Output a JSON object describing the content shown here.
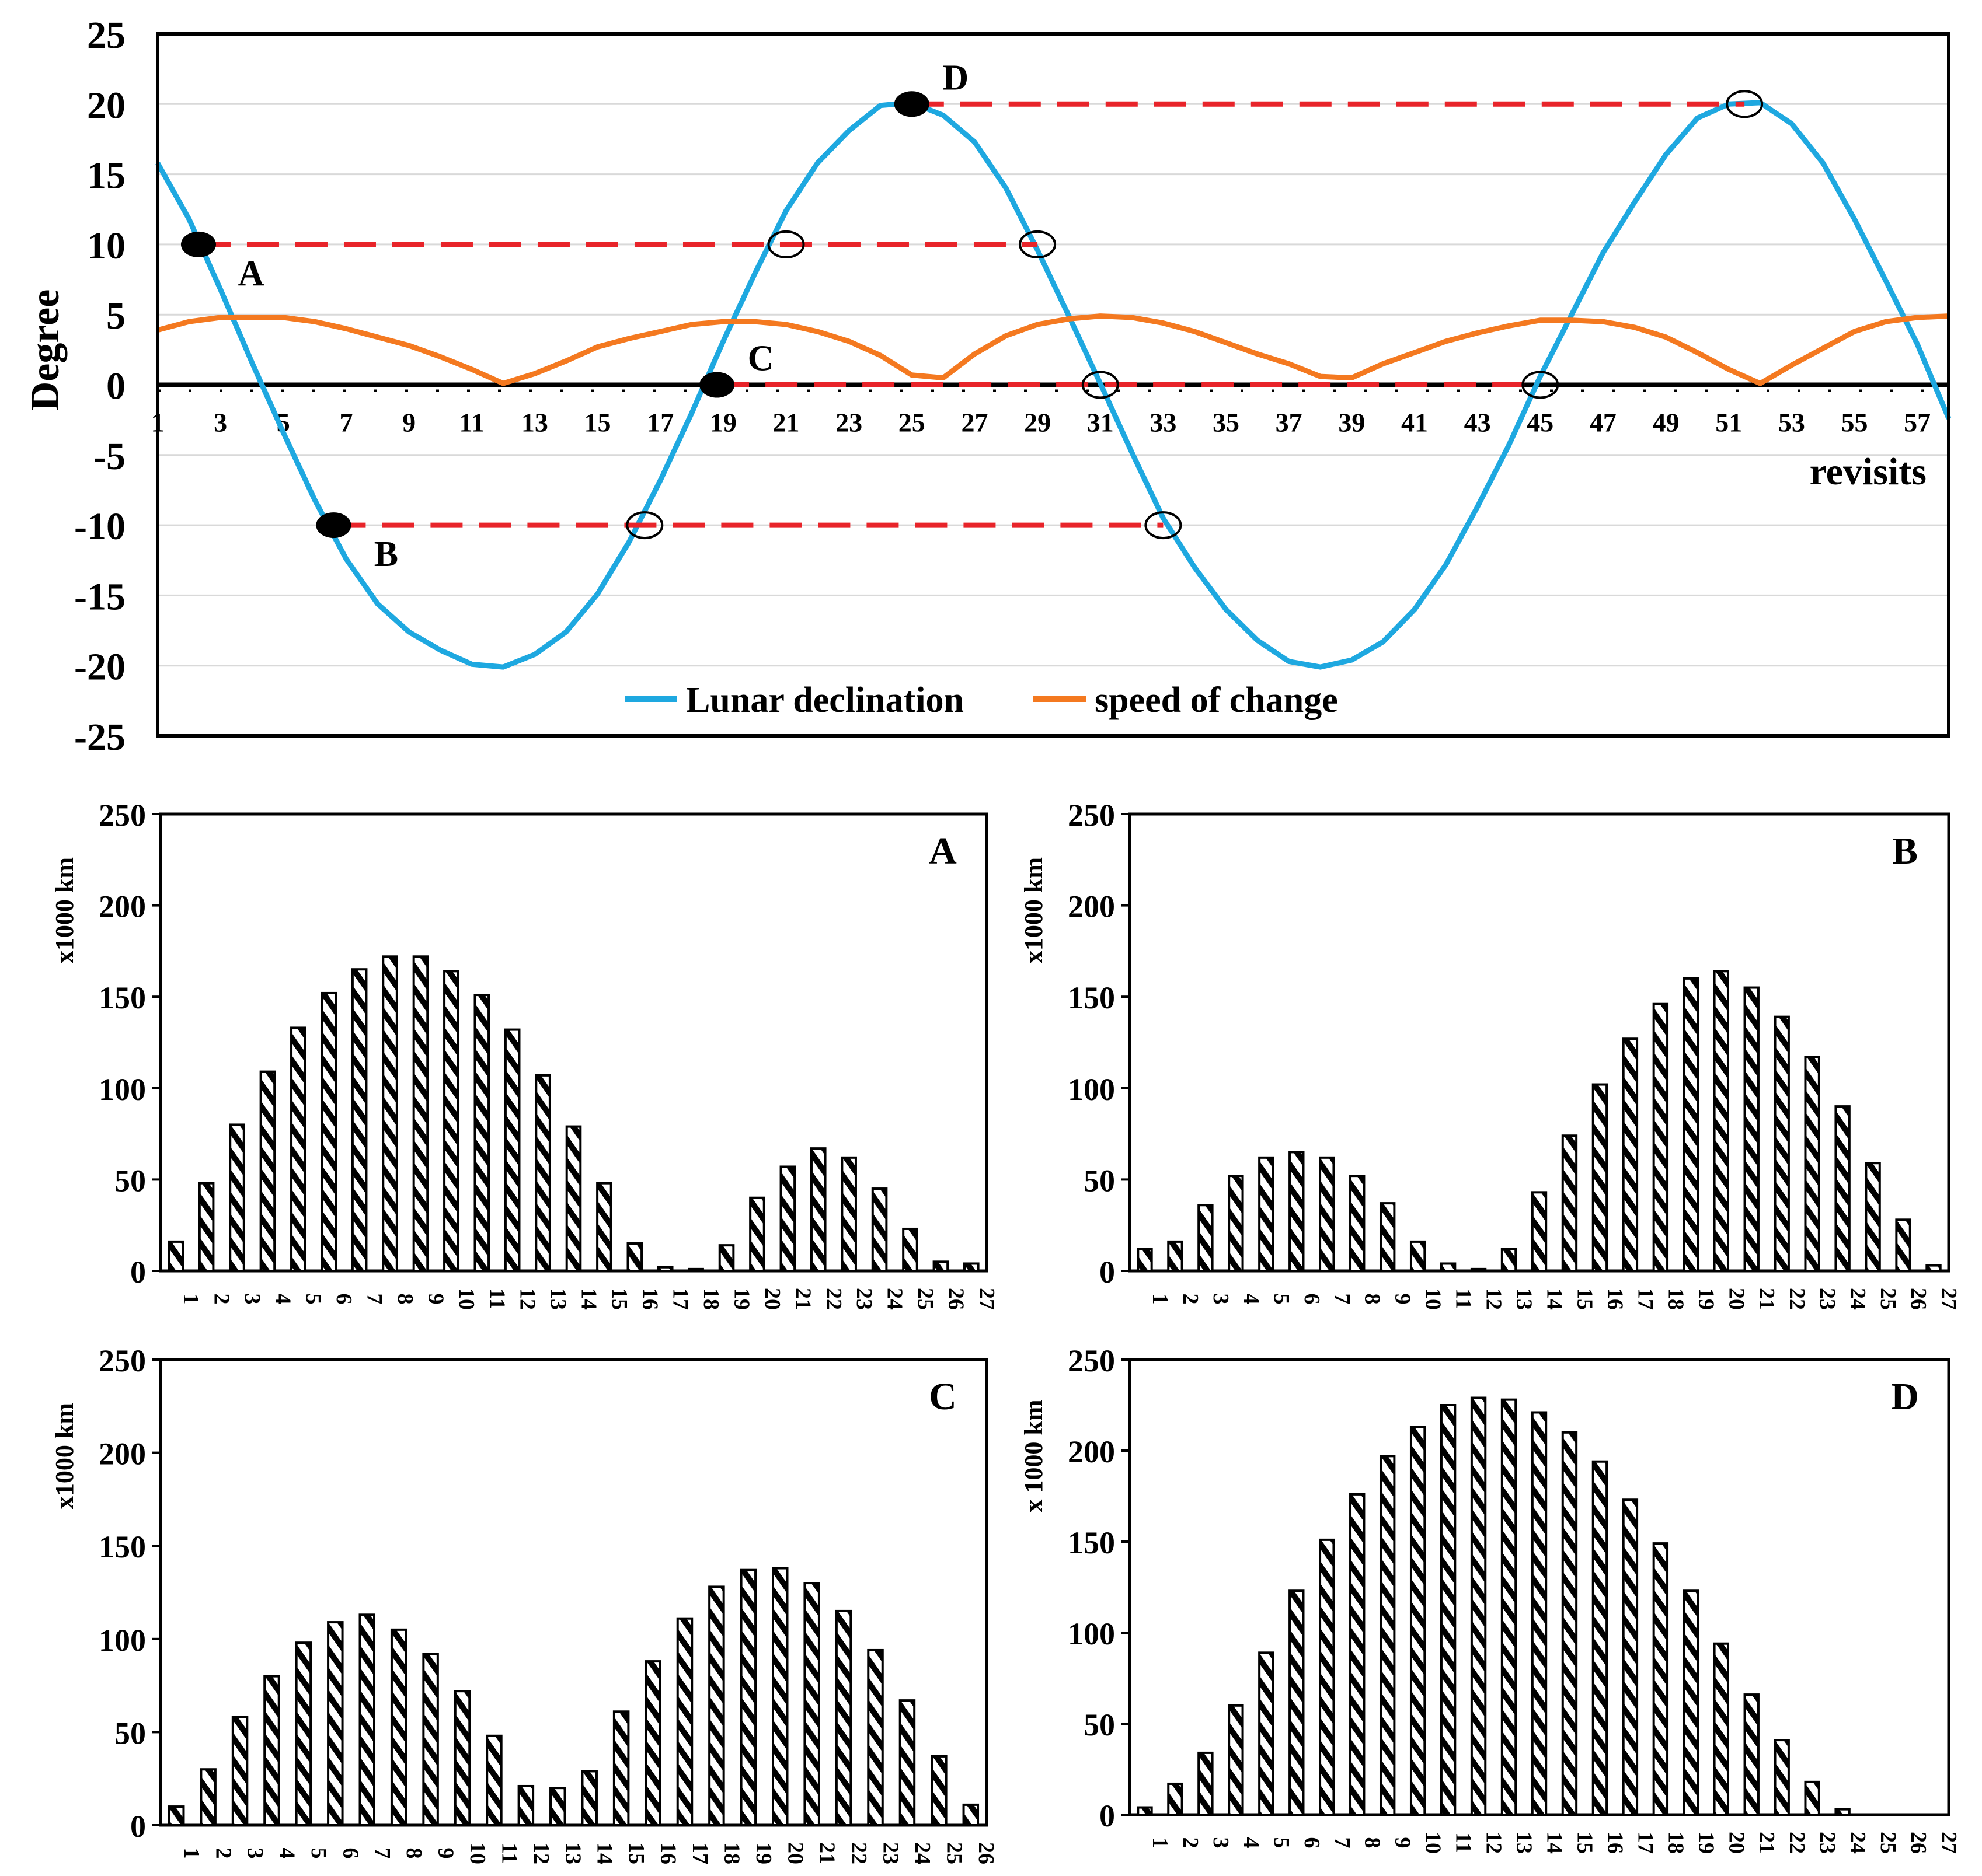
{
  "chart_data": [
    {
      "id": "declination",
      "type": "line",
      "ylabel": "Degree",
      "xlabel": "revisits",
      "ylim": [
        -25,
        25
      ],
      "yticks": [
        25,
        20,
        15,
        10,
        5,
        0,
        -5,
        -10,
        -15,
        -20,
        -25
      ],
      "xlim": [
        1,
        58
      ],
      "xticks": [
        1,
        3,
        5,
        7,
        9,
        11,
        13,
        15,
        17,
        19,
        21,
        23,
        25,
        27,
        29,
        31,
        33,
        35,
        37,
        39,
        41,
        43,
        45,
        47,
        49,
        51,
        53,
        55,
        57
      ],
      "grid": true,
      "legend_position": "bottom-center",
      "series": [
        {
          "name": "Lunar declination",
          "color": "#1EA8E0",
          "x": [
            1,
            2,
            3,
            4,
            5,
            6,
            7,
            8,
            9,
            10,
            11,
            12,
            13,
            14,
            15,
            16,
            17,
            18,
            19,
            20,
            21,
            22,
            23,
            24,
            25,
            26,
            27,
            28,
            29,
            30,
            31,
            32,
            33,
            34,
            35,
            36,
            37,
            38,
            39,
            40,
            41,
            42,
            43,
            44,
            45,
            46,
            47,
            48,
            49,
            50,
            51,
            52,
            53,
            54,
            55,
            56,
            57,
            58
          ],
          "values": [
            15.8,
            11.8,
            6.8,
            1.6,
            -3.4,
            -8.2,
            -12.4,
            -15.6,
            -17.6,
            -18.9,
            -19.9,
            -20.1,
            -19.2,
            -17.6,
            -14.9,
            -11.2,
            -6.8,
            -2.0,
            3.1,
            7.9,
            12.4,
            15.8,
            18.1,
            19.9,
            20.1,
            19.2,
            17.3,
            14.0,
            9.6,
            4.9,
            0.1,
            -4.8,
            -9.5,
            -13.0,
            -16.0,
            -18.2,
            -19.7,
            -20.1,
            -19.6,
            -18.3,
            -16.0,
            -12.8,
            -8.7,
            -4.3,
            0.6,
            5.0,
            9.4,
            13.0,
            16.4,
            19.0,
            20.0,
            20.1,
            18.6,
            15.8,
            11.8,
            7.4,
            2.9,
            -2.4
          ]
        },
        {
          "name": "speed of change",
          "color": "#F47920",
          "x": [
            1,
            2,
            3,
            4,
            5,
            6,
            7,
            8,
            9,
            10,
            11,
            12,
            13,
            14,
            15,
            16,
            17,
            18,
            19,
            20,
            21,
            22,
            23,
            24,
            25,
            26,
            27,
            28,
            29,
            30,
            31,
            32,
            33,
            34,
            35,
            36,
            37,
            38,
            39,
            40,
            41,
            42,
            43,
            44,
            45,
            46,
            47,
            48,
            49,
            50,
            51,
            52,
            53,
            54,
            55,
            56,
            57,
            58
          ],
          "values": [
            3.9,
            4.5,
            4.8,
            4.8,
            4.8,
            4.5,
            4.0,
            3.4,
            2.8,
            2.0,
            1.1,
            0.1,
            0.8,
            1.7,
            2.7,
            3.3,
            3.8,
            4.3,
            4.5,
            4.5,
            4.3,
            3.8,
            3.1,
            2.1,
            0.7,
            0.5,
            2.2,
            3.5,
            4.3,
            4.7,
            4.9,
            4.8,
            4.4,
            3.8,
            3.0,
            2.2,
            1.5,
            0.6,
            0.5,
            1.5,
            2.3,
            3.1,
            3.7,
            4.2,
            4.6,
            4.6,
            4.5,
            4.1,
            3.4,
            2.3,
            1.1,
            0.1,
            1.4,
            2.6,
            3.8,
            4.5,
            4.8,
            4.9
          ]
        }
      ],
      "annotations": [
        {
          "label": "A",
          "x": 2.3,
          "y": 10,
          "x_end": 29,
          "circles": [
            21,
            29
          ]
        },
        {
          "label": "B",
          "x": 6.6,
          "y": -10,
          "x_end": 33,
          "circles": [
            16.5,
            33
          ]
        },
        {
          "label": "C",
          "x": 18.8,
          "y": 0,
          "x_end": 45,
          "circles": [
            31,
            45
          ]
        },
        {
          "label": "D",
          "x": 25,
          "y": 20,
          "x_end": 51.5,
          "circles": [
            51.5
          ]
        }
      ]
    },
    {
      "id": "A",
      "type": "bar",
      "title": "A",
      "ylabel": "x1000 km",
      "ylim": [
        0,
        250
      ],
      "yticks": [
        0,
        50,
        100,
        150,
        200,
        250
      ],
      "categories": [
        "1",
        "2",
        "3",
        "4",
        "5",
        "6",
        "7",
        "8",
        "9",
        "10",
        "11",
        "12",
        "13",
        "14",
        "15",
        "16",
        "17",
        "18",
        "19",
        "20",
        "21",
        "22",
        "23",
        "24",
        "25",
        "26",
        "27"
      ],
      "values": [
        16,
        48,
        80,
        109,
        133,
        152,
        165,
        172,
        172,
        164,
        151,
        132,
        107,
        79,
        48,
        15,
        2,
        1,
        14,
        40,
        57,
        67,
        62,
        45,
        23,
        5,
        4
      ]
    },
    {
      "id": "B",
      "type": "bar",
      "title": "B",
      "ylabel": "x1000 km",
      "ylim": [
        0,
        250
      ],
      "yticks": [
        0,
        50,
        100,
        150,
        200,
        250
      ],
      "categories": [
        "1",
        "2",
        "3",
        "4",
        "5",
        "6",
        "7",
        "8",
        "9",
        "10",
        "11",
        "12",
        "13",
        "14",
        "15",
        "16",
        "17",
        "18",
        "19",
        "20",
        "21",
        "22",
        "23",
        "24",
        "25",
        "26",
        "27"
      ],
      "values": [
        12,
        16,
        36,
        52,
        62,
        65,
        62,
        52,
        37,
        16,
        4,
        1,
        12,
        43,
        74,
        102,
        127,
        146,
        160,
        164,
        155,
        139,
        117,
        90,
        59,
        28,
        3
      ]
    },
    {
      "id": "C",
      "type": "bar",
      "title": "C",
      "ylabel": "x1000 km",
      "ylim": [
        0,
        250
      ],
      "yticks": [
        0,
        50,
        100,
        150,
        200,
        250
      ],
      "categories": [
        "1",
        "2",
        "3",
        "4",
        "5",
        "6",
        "7",
        "8",
        "9",
        "10",
        "11",
        "12",
        "13",
        "14",
        "15",
        "16",
        "17",
        "18",
        "19",
        "20",
        "21",
        "22",
        "23",
        "24",
        "25",
        "26"
      ],
      "values": [
        10,
        30,
        58,
        80,
        98,
        109,
        113,
        105,
        92,
        72,
        48,
        21,
        20,
        29,
        61,
        88,
        111,
        128,
        137,
        138,
        130,
        115,
        94,
        67,
        37,
        11
      ]
    },
    {
      "id": "D",
      "type": "bar",
      "title": "D",
      "ylabel": "x 1000 km",
      "ylim": [
        0,
        250
      ],
      "yticks": [
        0,
        50,
        100,
        150,
        200,
        250
      ],
      "categories": [
        "1",
        "2",
        "3",
        "4",
        "5",
        "6",
        "7",
        "8",
        "9",
        "10",
        "11",
        "12",
        "13",
        "14",
        "15",
        "16",
        "17",
        "18",
        "19",
        "20",
        "21",
        "22",
        "23",
        "24",
        "25",
        "26",
        "27"
      ],
      "values": [
        4,
        17,
        34,
        60,
        89,
        123,
        151,
        176,
        197,
        213,
        225,
        229,
        228,
        221,
        210,
        194,
        173,
        149,
        123,
        94,
        66,
        41,
        18,
        3,
        0,
        0,
        0
      ]
    }
  ]
}
